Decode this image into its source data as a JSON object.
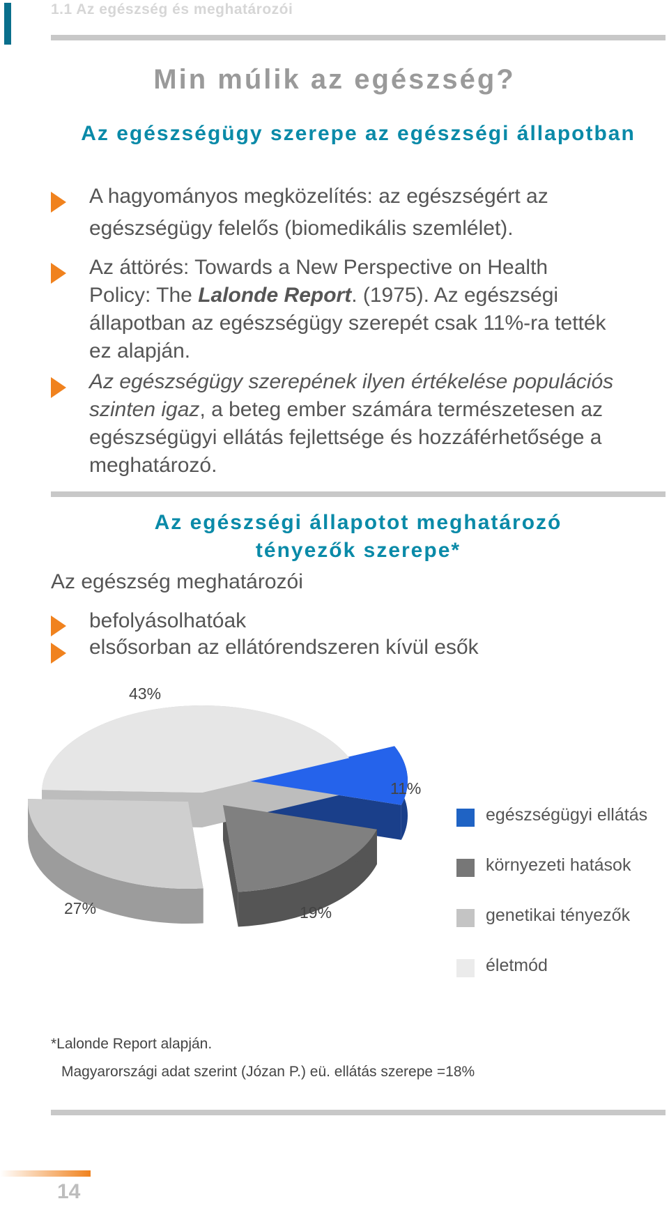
{
  "header": {
    "section": "1.1 Az egészség és meghatározói"
  },
  "title": "Min múlik az egészség?",
  "section1": {
    "title": "Az egészségügy szerepe az egészségi állapotban",
    "bullets": [
      {
        "line1": "A hagyományos megközelítés: az egészségért az",
        "line2": "egészségügy felelős (biomedikális szemlélet)."
      },
      {
        "line1": "Az áttörés: Towards a New Perspective on Health",
        "line2_pre": "Policy: The ",
        "line2_em": "Lalonde Report",
        "line2_post": ". (1975). Az egészségi",
        "line3": "állapotban az egészségügy szerepét csak 11%-ra tették",
        "line4": "ez alapján."
      },
      {
        "line1_em": "Az egészségügy szerepének ilyen értékelése populációs",
        "line2_em": "szinten igaz",
        "line2_post": ", a beteg ember számára természetesen az",
        "line3": "egészségügyi ellátás fejlettsége és hozzáférhetősége a",
        "line4": "meghatározó."
      }
    ]
  },
  "section2": {
    "title_line1": "Az egészségi állapotot meghatározó",
    "title_line2": "tényezők szerepe*",
    "subtitle": "Az egészség meghatározói",
    "bullets": [
      "befolyásolhatóak",
      "elsősorban az ellátórendszeren kívül esők"
    ]
  },
  "chart_data": {
    "type": "pie",
    "labels": [
      "egészségügyi ellátás",
      "környezeti hatások",
      "genetikai tényezők",
      "életmód"
    ],
    "values": [
      11,
      19,
      27,
      43
    ],
    "value_labels": [
      "11%",
      "19%",
      "27%",
      "43%"
    ],
    "colors": [
      "#2563eb",
      "#808080",
      "#cfcfcf",
      "#e6e6e6"
    ],
    "legend": "right"
  },
  "notes": {
    "footnote": "*Lalonde Report alapján.",
    "hungary": "Magyarországi adat szerint (Józan P.) eü. ellátás szerepe =18%"
  },
  "page_number": "14"
}
